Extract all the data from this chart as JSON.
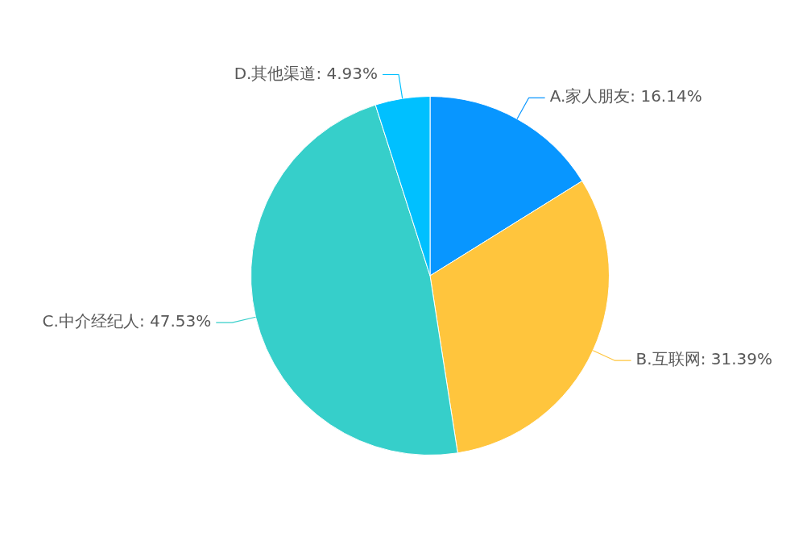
{
  "chart_data": {
    "type": "pie",
    "categories": [
      "A.家人朋友",
      "B.互联网",
      "C.中介经纪人",
      "D.其他渠道"
    ],
    "values": [
      16.14,
      31.39,
      47.53,
      4.93
    ],
    "value_labels": [
      "16.14%",
      "31.39%",
      "47.53%",
      "4.93%"
    ],
    "colors": [
      "#0896ff",
      "#ffc53d",
      "#36cfca",
      "#00c0ff"
    ],
    "legend": false
  }
}
